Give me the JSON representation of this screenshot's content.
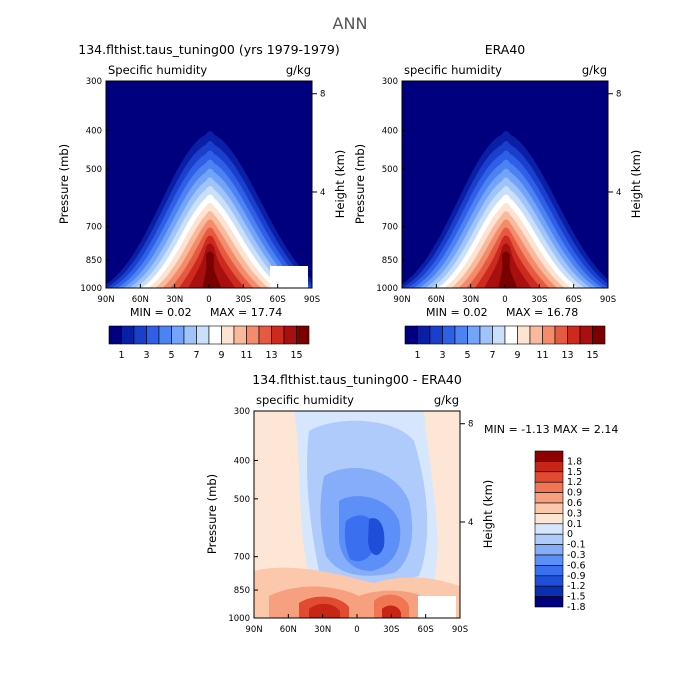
{
  "figure": {
    "title": "ANN"
  },
  "palettes": {
    "full": [
      "#00007f",
      "#0a1fa6",
      "#1a3fcc",
      "#2f5fe6",
      "#4d82f2",
      "#73a4fa",
      "#9ec4fb",
      "#c9dffa",
      "#ffffff",
      "#fde3d2",
      "#f9b99c",
      "#f48b6b",
      "#e65a41",
      "#cc2a1e",
      "#a80f0f",
      "#7a0000"
    ],
    "diff": [
      "#00007f",
      "#0a2fb3",
      "#1f4fd9",
      "#3a6ff0",
      "#5c8ff7",
      "#86adfa",
      "#aecbfb",
      "#d6e6fc",
      "#fde6d6",
      "#fbc8ab",
      "#f7a07f",
      "#f07553",
      "#e24a31",
      "#c72515",
      "#8f0000"
    ]
  },
  "panels": [
    {
      "id": "model",
      "title": "134.flthist.taus_tuning00 (yrs 1979-1979)",
      "left_label": "Specific humidity",
      "right_label": "g/kg",
      "min_text": "MIN =   0.02",
      "max_text": "MAX =  17.74",
      "y_axis_label": "Pressure (mb)",
      "y2_axis_label": "Height (km)"
    },
    {
      "id": "era40",
      "title": "ERA40",
      "left_label": "specific humidity",
      "right_label": "g/kg",
      "min_text": "MIN =   0.02",
      "max_text": "MAX =  16.78",
      "y_axis_label": "Pressure (mb)",
      "y2_axis_label": "Height (km)"
    },
    {
      "id": "diff",
      "title": "134.flthist.taus_tuning00 - ERA40",
      "left_label": "specific humidity",
      "right_label": "g/kg",
      "min_max_text": "MIN =   -1.13   MAX =    2.14",
      "y_axis_label": "Pressure (mb)",
      "y2_axis_label": "Height (km)"
    }
  ],
  "chart_data": [
    {
      "type": "heatmap",
      "title": "134.flthist.taus_tuning00 (yrs 1979-1979)",
      "variable": "Specific humidity",
      "units": "g/kg",
      "xlabel": "",
      "ylabel": "Pressure (mb)",
      "y2label": "Height (km)",
      "x_ticks": [
        "90N",
        "60N",
        "30N",
        "0",
        "30S",
        "60S",
        "90S"
      ],
      "y_ticks": [
        300,
        400,
        500,
        700,
        850,
        1000
      ],
      "y2_ticks": [
        4,
        8
      ],
      "ylim": [
        1000,
        300
      ],
      "min": 0.02,
      "max": 17.74,
      "peak_value": 17.74,
      "colorbar_labels": [
        "1",
        "3",
        "5",
        "7",
        "9",
        "11",
        "13",
        "15"
      ]
    },
    {
      "type": "heatmap",
      "title": "ERA40",
      "variable": "specific humidity",
      "units": "g/kg",
      "xlabel": "",
      "ylabel": "Pressure (mb)",
      "y2label": "Height (km)",
      "x_ticks": [
        "90N",
        "60N",
        "30N",
        "0",
        "30S",
        "60S",
        "90S"
      ],
      "y_ticks": [
        300,
        400,
        500,
        700,
        850,
        1000
      ],
      "y2_ticks": [
        4,
        8
      ],
      "ylim": [
        1000,
        300
      ],
      "min": 0.02,
      "max": 16.78,
      "peak_value": 16.78,
      "colorbar_labels": [
        "1",
        "3",
        "5",
        "7",
        "9",
        "11",
        "13",
        "15"
      ]
    },
    {
      "type": "heatmap",
      "title": "134.flthist.taus_tuning00 - ERA40",
      "variable": "specific humidity",
      "units": "g/kg",
      "xlabel": "",
      "ylabel": "Pressure (mb)",
      "y2label": "Height (km)",
      "x_ticks": [
        "90N",
        "60N",
        "30N",
        "0",
        "30S",
        "60S",
        "90S"
      ],
      "y_ticks": [
        300,
        400,
        500,
        700,
        850,
        1000
      ],
      "y2_ticks": [
        4,
        8
      ],
      "ylim": [
        1000,
        300
      ],
      "min": -1.13,
      "max": 2.14,
      "colorbar_labels": [
        "1.8",
        "1.5",
        "1.2",
        "0.9",
        "0.6",
        "0.3",
        "0.1",
        "0",
        "-0.1",
        "-0.3",
        "-0.6",
        "-0.9",
        "-1.2",
        "-1.5",
        "-1.8"
      ]
    }
  ]
}
